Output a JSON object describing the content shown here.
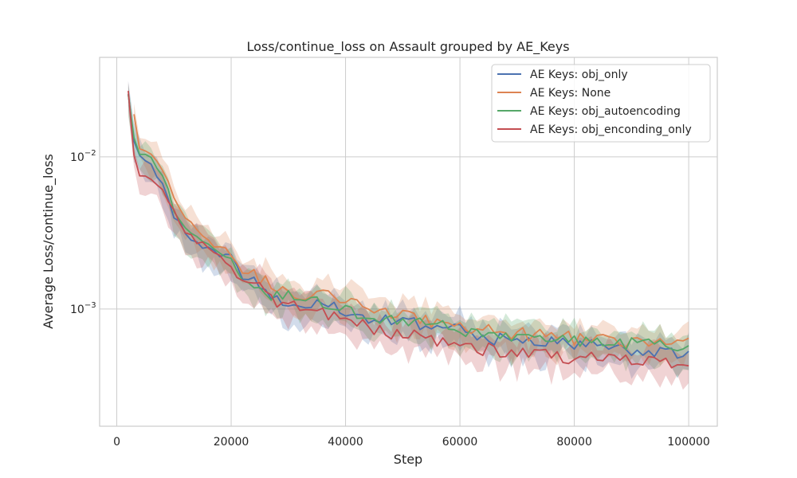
{
  "chart_data": {
    "type": "line",
    "title": "Loss/continue_loss on Assault grouped by AE_Keys",
    "xlabel": "Step",
    "ylabel": "Average Loss/continue_loss",
    "yscale": "log",
    "xlim": [
      -3000,
      105000
    ],
    "ylim": [
      0.00017,
      0.045
    ],
    "xticks": [
      0,
      20000,
      40000,
      60000,
      80000,
      100000
    ],
    "xtick_labels": [
      "0",
      "20000",
      "40000",
      "60000",
      "80000",
      "100000"
    ],
    "yticks": [
      {
        "base": "10",
        "exp": "−2",
        "value": 0.01
      },
      {
        "base": "10",
        "exp": "−3",
        "value": 0.001
      }
    ],
    "grid": true,
    "legend_position": "top-right",
    "series": [
      {
        "name": "AE Keys: obj_only",
        "color": "#4c72b0",
        "x": [
          2000,
          3000,
          4000,
          6000,
          8000,
          10000,
          12000,
          14000,
          16000,
          18000,
          20000,
          22000,
          25000,
          28000,
          30000,
          34000,
          38000,
          40000,
          44000,
          48000,
          52000,
          56000,
          60000,
          64000,
          68000,
          72000,
          76000,
          80000,
          84000,
          88000,
          92000,
          96000,
          98000,
          100000
        ],
        "y": [
          0.026,
          0.0125,
          0.0098,
          0.0088,
          0.0066,
          0.0041,
          0.0032,
          0.0027,
          0.0025,
          0.0023,
          0.0021,
          0.0016,
          0.0015,
          0.0012,
          0.00115,
          0.00105,
          0.001,
          0.00095,
          0.00088,
          0.00085,
          0.0008,
          0.00075,
          0.00072,
          0.00066,
          0.00063,
          0.00062,
          0.0006,
          0.00058,
          0.00057,
          0.00056,
          0.00054,
          0.00052,
          0.0005,
          0.0005
        ]
      },
      {
        "name": "AE Keys: None",
        "color": "#dd8452",
        "x": [
          3000,
          4000,
          6000,
          8000,
          10000,
          12000,
          14000,
          16000,
          18000,
          20000,
          22000,
          25000,
          28000,
          30000,
          34000,
          38000,
          40000,
          44000,
          48000,
          52000,
          56000,
          60000,
          64000,
          68000,
          72000,
          76000,
          80000,
          84000,
          88000,
          92000,
          96000,
          100000
        ],
        "y": [
          0.0195,
          0.0118,
          0.0105,
          0.0085,
          0.0054,
          0.0041,
          0.0034,
          0.0028,
          0.0025,
          0.0022,
          0.0019,
          0.0016,
          0.00135,
          0.0013,
          0.00125,
          0.0012,
          0.00112,
          0.00098,
          0.00092,
          0.00088,
          0.00082,
          0.00078,
          0.00075,
          0.00071,
          0.00068,
          0.00066,
          0.00064,
          0.00063,
          0.00062,
          0.0006,
          0.0006,
          0.0006
        ]
      },
      {
        "name": "AE Keys: obj_autoencoding",
        "color": "#55a868",
        "x": [
          2000,
          3000,
          4000,
          6000,
          8000,
          10000,
          12000,
          14000,
          16000,
          18000,
          20000,
          22000,
          25000,
          28000,
          30000,
          34000,
          38000,
          40000,
          44000,
          48000,
          52000,
          56000,
          60000,
          64000,
          68000,
          72000,
          76000,
          80000,
          84000,
          88000,
          92000,
          96000,
          100000
        ],
        "y": [
          0.026,
          0.013,
          0.0105,
          0.0095,
          0.0078,
          0.0045,
          0.0035,
          0.0029,
          0.0026,
          0.0024,
          0.0021,
          0.0016,
          0.0014,
          0.0012,
          0.0012,
          0.0011,
          0.00105,
          0.00098,
          0.00092,
          0.00086,
          0.00082,
          0.00078,
          0.00074,
          0.0007,
          0.00067,
          0.00065,
          0.00063,
          0.00062,
          0.00061,
          0.0006,
          0.00059,
          0.00058,
          0.00058
        ]
      },
      {
        "name": "AE Keys: obj_enconding_only",
        "color": "#c44e52",
        "x": [
          2000,
          3000,
          4000,
          6000,
          8000,
          10000,
          12000,
          14000,
          16000,
          18000,
          20000,
          22000,
          25000,
          28000,
          30000,
          34000,
          38000,
          40000,
          44000,
          48000,
          52000,
          56000,
          60000,
          64000,
          68000,
          72000,
          76000,
          80000,
          84000,
          88000,
          92000,
          96000,
          98000,
          100000
        ],
        "y": [
          0.026,
          0.01,
          0.0078,
          0.0072,
          0.0063,
          0.0044,
          0.0033,
          0.0028,
          0.0025,
          0.0023,
          0.002,
          0.0015,
          0.0014,
          0.0011,
          0.0011,
          0.00095,
          0.0009,
          0.00085,
          0.00075,
          0.0007,
          0.00066,
          0.00062,
          0.00058,
          0.00055,
          0.00052,
          0.0005,
          0.00049,
          0.00048,
          0.00047,
          0.00046,
          0.00045,
          0.00043,
          0.00042,
          0.00041
        ]
      }
    ]
  }
}
